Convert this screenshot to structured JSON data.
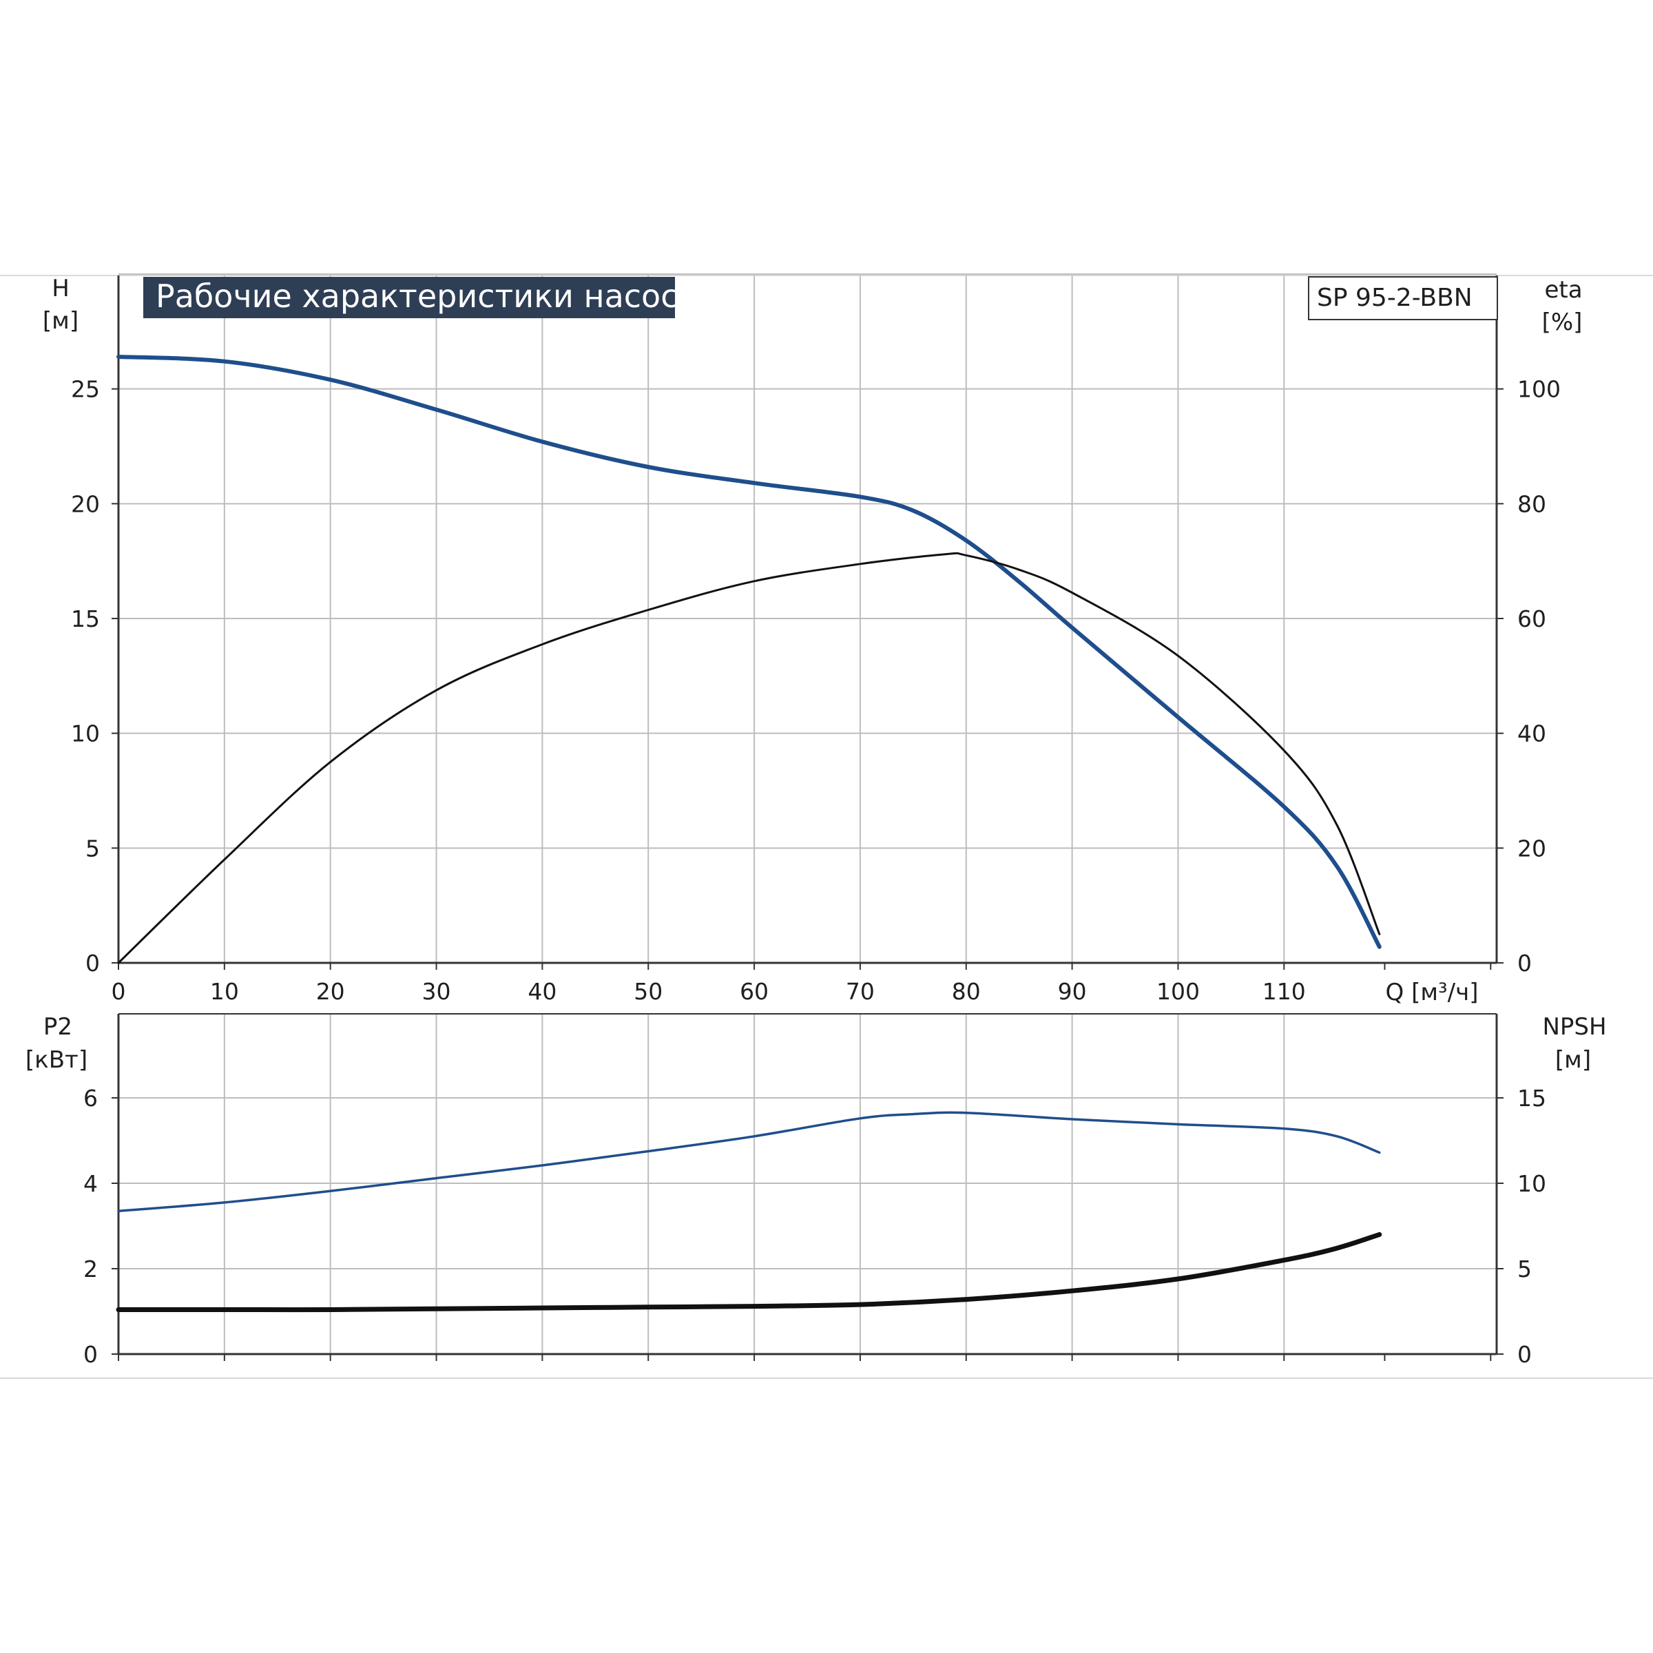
{
  "title": "Рабочие характеристики насоса",
  "model_label": "SP 95-2-BBN",
  "colors": {
    "blue": "#1f4e8c",
    "black": "#111111",
    "grid": "#bdbdbd",
    "title_bg": "#2e3e55"
  },
  "x_axis": {
    "label": "Q [м³/ч]",
    "ticks": [
      0,
      10,
      20,
      30,
      40,
      50,
      60,
      70,
      80,
      90,
      100,
      110
    ],
    "range": [
      0,
      130
    ]
  },
  "top_chart": {
    "left_axis": {
      "label_line1": "H",
      "label_line2": "[м]",
      "ticks": [
        0,
        5,
        10,
        15,
        20,
        25
      ],
      "range": [
        0,
        30
      ]
    },
    "right_axis": {
      "label_line1": "eta",
      "label_line2": "[%]",
      "ticks": [
        0,
        20,
        40,
        60,
        80,
        100
      ],
      "range": [
        0,
        120
      ]
    }
  },
  "bottom_chart": {
    "left_axis": {
      "label_line1": "P2",
      "label_line2": "[кВт]",
      "ticks": [
        0,
        2,
        4,
        6
      ],
      "range": [
        0,
        8
      ]
    },
    "right_axis": {
      "label_line1": "NPSH",
      "label_line2": "[м]",
      "ticks": [
        0,
        5,
        10,
        15
      ],
      "range": [
        0,
        20
      ]
    }
  },
  "chart_data": [
    {
      "type": "line",
      "title": "Рабочие характеристики насоса",
      "xlabel": "Q [м³/ч]",
      "ylabel": "H [м]",
      "y2label": "eta [%]",
      "xlim": [
        0,
        130
      ],
      "ylim": [
        0,
        30
      ],
      "y2lim": [
        0,
        120
      ],
      "grid": true,
      "series": [
        {
          "name": "H",
          "axis": "left",
          "color": "#1f4e8c",
          "x": [
            0,
            10,
            20,
            30,
            40,
            50,
            60,
            70,
            75,
            80,
            85,
            90,
            100,
            110,
            115,
            119
          ],
          "y": [
            26.4,
            26.2,
            25.4,
            24.1,
            22.7,
            21.6,
            20.9,
            20.3,
            19.7,
            18.4,
            16.6,
            14.6,
            10.7,
            6.8,
            4.2,
            0.7
          ]
        },
        {
          "name": "eta",
          "axis": "right",
          "color": "#111111",
          "x": [
            0,
            10,
            20,
            30,
            40,
            50,
            60,
            70,
            78,
            80,
            85,
            90,
            100,
            110,
            115,
            119
          ],
          "y": [
            0,
            18,
            35,
            47.5,
            55.5,
            61.5,
            66.5,
            69.5,
            71.2,
            71,
            68.5,
            64.5,
            53.5,
            37,
            24,
            5
          ]
        }
      ]
    },
    {
      "type": "line",
      "title": "",
      "xlabel": "Q [м³/ч]",
      "ylabel": "P2 [кВт]",
      "y2label": "NPSH [м]",
      "xlim": [
        0,
        130
      ],
      "ylim": [
        0,
        8
      ],
      "y2lim": [
        0,
        20
      ],
      "grid": true,
      "series": [
        {
          "name": "P2",
          "axis": "left",
          "color": "#1f4e8c",
          "x": [
            0,
            10,
            20,
            30,
            40,
            50,
            60,
            70,
            75,
            80,
            90,
            100,
            110,
            115,
            119
          ],
          "y": [
            3.35,
            3.55,
            3.82,
            4.12,
            4.42,
            4.75,
            5.1,
            5.52,
            5.62,
            5.65,
            5.5,
            5.38,
            5.28,
            5.1,
            4.72
          ]
        },
        {
          "name": "NPSH",
          "axis": "right",
          "color": "#111111",
          "x": [
            0,
            10,
            20,
            30,
            40,
            50,
            60,
            70,
            80,
            90,
            100,
            110,
            115,
            119
          ],
          "y": [
            2.6,
            2.6,
            2.6,
            2.65,
            2.7,
            2.75,
            2.8,
            2.9,
            3.2,
            3.7,
            4.4,
            5.5,
            6.2,
            7.0
          ]
        }
      ]
    }
  ]
}
